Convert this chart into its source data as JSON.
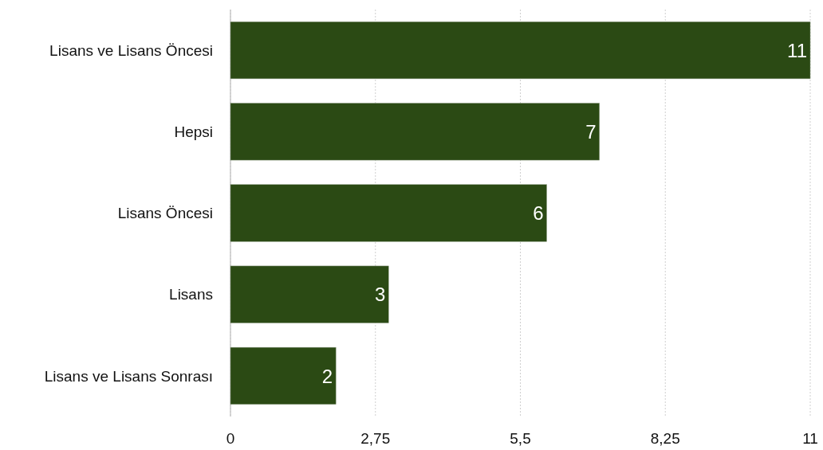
{
  "chart_data": {
    "type": "bar",
    "orientation": "horizontal",
    "categories": [
      "Lisans ve Lisans Öncesi",
      "Hepsi",
      "Lisans Öncesi",
      "Lisans",
      "Lisans ve Lisans Sonrası"
    ],
    "values": [
      11,
      7,
      6,
      3,
      2
    ],
    "color": "#2b4a14",
    "xlim": [
      0,
      11
    ],
    "xticks": [
      0,
      {
        "value": 2.75,
        "label": "2,75"
      },
      {
        "value": 5.5,
        "label": "5,5"
      },
      {
        "value": 8.25,
        "label": "8,25"
      },
      11
    ],
    "grid": "x",
    "data_labels": true
  }
}
